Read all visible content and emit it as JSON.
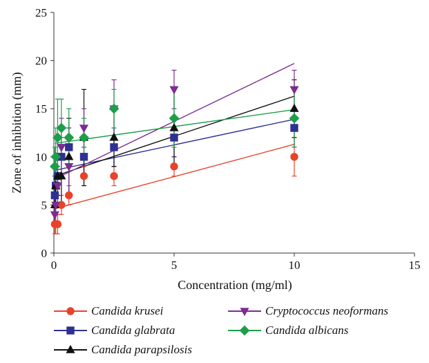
{
  "chart_data": {
    "type": "scatter",
    "xlabel": "Concentration (mg/ml)",
    "ylabel": "Zone of inhibition (mm)",
    "xlim": [
      0,
      15
    ],
    "ylim": [
      0,
      25
    ],
    "xticks": [
      0,
      5,
      10,
      15
    ],
    "yticks": [
      0,
      5,
      10,
      15,
      20,
      25
    ],
    "grid": false,
    "legend_position": "bottom",
    "series": [
      {
        "name": "Candida krusei",
        "color": "#e8432a",
        "marker": "circle",
        "x": [
          0.039,
          0.078,
          0.156,
          0.3125,
          0.625,
          1.25,
          2.5,
          5,
          10
        ],
        "y": [
          3,
          3,
          3,
          5,
          6,
          8,
          8,
          9,
          10
        ],
        "err": [
          1,
          1,
          1,
          1,
          1,
          1,
          1,
          1,
          2
        ],
        "trend": [
          [
            0.039,
            4.6
          ],
          [
            10,
            11.3
          ]
        ]
      },
      {
        "name": "Candida glabrata",
        "color": "#2e3192",
        "marker": "square",
        "x": [
          0.039,
          0.078,
          0.156,
          0.3125,
          0.625,
          1.25,
          2.5,
          5,
          10
        ],
        "y": [
          6,
          7,
          8,
          10,
          11,
          10,
          11,
          12,
          13
        ],
        "err": [
          2,
          2,
          2,
          2,
          2,
          2,
          2,
          2,
          2
        ],
        "trend": [
          [
            0.039,
            8.6
          ],
          [
            10,
            13.9
          ]
        ]
      },
      {
        "name": "Candida parapsilosis",
        "color": "#111111",
        "marker": "triangle",
        "x": [
          0.039,
          0.078,
          0.156,
          0.3125,
          0.625,
          1.25,
          2.5,
          5,
          10
        ],
        "y": [
          5,
          7,
          8,
          8,
          10,
          12,
          12,
          13,
          15
        ],
        "err": [
          2,
          2,
          2,
          3,
          4,
          5,
          3,
          4,
          3
        ],
        "trend": [
          [
            0.039,
            8.0
          ],
          [
            10,
            16.3
          ]
        ]
      },
      {
        "name": "Cryptococcus neoformans",
        "color": "#7b2d91",
        "marker": "triangle-down",
        "x": [
          0.039,
          0.078,
          0.156,
          0.3125,
          0.625,
          1.25,
          2.5,
          5,
          10
        ],
        "y": [
          4,
          5,
          7,
          11,
          9,
          13,
          15,
          17,
          17
        ],
        "err": [
          1,
          1,
          2,
          3,
          3,
          2,
          3,
          2,
          2
        ],
        "trend": [
          [
            0.039,
            7.7
          ],
          [
            10,
            19.7
          ]
        ]
      },
      {
        "name": "Candida albicans",
        "color": "#1e9e4a",
        "marker": "diamond",
        "x": [
          0.039,
          0.078,
          0.156,
          0.3125,
          0.625,
          1.25,
          2.5,
          5,
          10
        ],
        "y": [
          9,
          10,
          12,
          13,
          12,
          12,
          15,
          14,
          14
        ],
        "err": [
          2,
          3,
          4,
          3,
          3,
          2,
          2,
          3,
          3
        ],
        "trend": [
          [
            0.039,
            11.4
          ],
          [
            10,
            14.9
          ]
        ]
      }
    ]
  }
}
